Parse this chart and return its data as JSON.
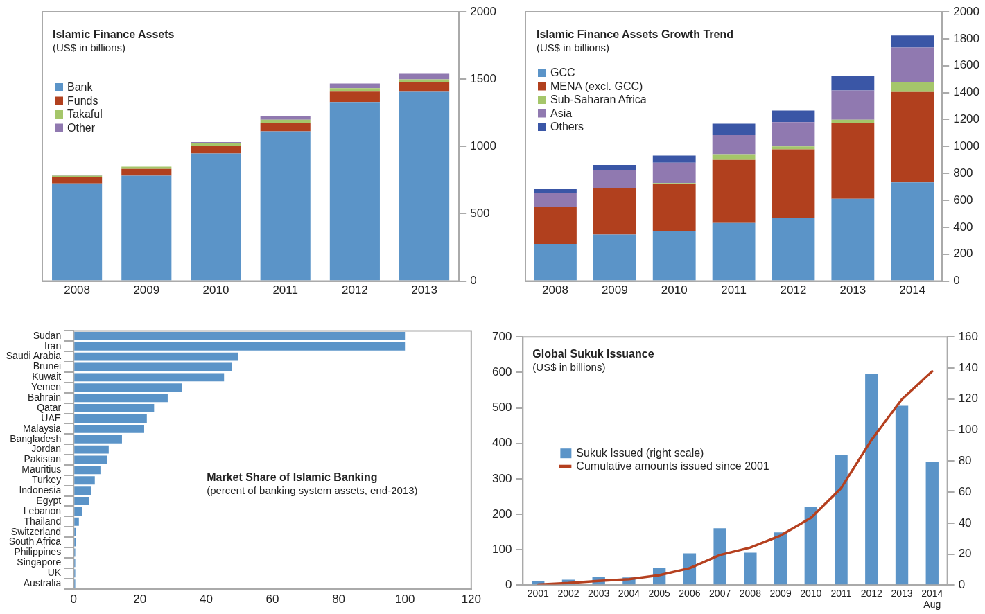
{
  "chart_data": [
    {
      "type": "bar",
      "title": "Islamic Finance Assets",
      "subtitle": "(US$ in billions)",
      "stacked": true,
      "legend": "top left",
      "categories": [
        "2008",
        "2009",
        "2010",
        "2011",
        "2012",
        "2013"
      ],
      "series": [
        {
          "name": "Bank",
          "color": "#5b94c8",
          "values": [
            725,
            783,
            948,
            1112,
            1330,
            1405
          ]
        },
        {
          "name": "Funds",
          "color": "#b1401e",
          "values": [
            50,
            50,
            58,
            62,
            77,
            72
          ]
        },
        {
          "name": "Takaful",
          "color": "#a5c66a",
          "values": [
            8,
            17,
            19,
            24,
            26,
            21
          ]
        },
        {
          "name": "Other",
          "color": "#9079b0",
          "values": [
            5,
            null,
            7,
            26,
            34,
            41
          ]
        }
      ],
      "ylim": [
        0,
        2000
      ],
      "yticks": [
        0,
        500,
        1000,
        1500,
        2000
      ]
    },
    {
      "type": "bar",
      "title": "Islamic Finance Assets Growth Trend",
      "subtitle": "(US$ in billions)",
      "stacked": true,
      "legend": "top left",
      "categories": [
        "2008",
        "2009",
        "2010",
        "2011",
        "2012",
        "2013",
        "2014"
      ],
      "series": [
        {
          "name": "GCC",
          "color": "#5b94c8",
          "values": [
            276,
            345,
            374,
            432,
            470,
            612,
            733
          ]
        },
        {
          "name": "MENA (excl. GCC)",
          "color": "#b1401e",
          "values": [
            272,
            344,
            347,
            468,
            509,
            562,
            671
          ]
        },
        {
          "name": "Sub-Saharan Africa",
          "color": "#a5c66a",
          "values": [
            0,
            0,
            7,
            43,
            21,
            25,
            73
          ]
        },
        {
          "name": "Asia",
          "color": "#9079b0",
          "values": [
            105,
            133,
            151,
            141,
            180,
            217,
            258
          ]
        },
        {
          "name": "Others",
          "color": "#3a56a6",
          "values": [
            30,
            41,
            53,
            85,
            87,
            105,
            89
          ]
        }
      ],
      "ylim": [
        0,
        2000
      ],
      "yticks": [
        0,
        200,
        400,
        600,
        800,
        1000,
        1200,
        1400,
        1600,
        1800,
        2000
      ]
    },
    {
      "type": "bar",
      "orientation": "horizontal",
      "title": "Market Share of Islamic Banking",
      "subtitle": "(percent of banking system assets, end-2013)",
      "categories": [
        "Sudan",
        "Iran",
        "Saudi Arabia",
        "Brunei",
        "Kuwait",
        "Yemen",
        "Bahrain",
        "Qatar",
        "UAE",
        "Malaysia",
        "Bangladesh",
        "Jordan",
        "Pakistan",
        "Mauritius",
        "Turkey",
        "Indonesia",
        "Egypt",
        "Lebanon",
        "Thailand",
        "Switzerland",
        "South Africa",
        "Philippines",
        "Singapore",
        "UK",
        "Australia"
      ],
      "values": [
        100,
        100,
        49.7,
        47.8,
        45.4,
        32.8,
        28.4,
        24.3,
        22.1,
        21.3,
        14.6,
        10.6,
        10.1,
        8.1,
        6.4,
        5.4,
        4.6,
        2.6,
        1.6,
        0.7,
        0.6,
        0.5,
        0.5,
        0.5,
        0.5
      ],
      "color": "#5b94c8",
      "xlim": [
        0,
        120
      ],
      "xticks": [
        0,
        20,
        40,
        60,
        80,
        100,
        120
      ]
    },
    {
      "type": "bar",
      "title": "Global Sukuk Issuance",
      "subtitle": "(US$ in billions)",
      "legend": "left",
      "categories": [
        "2001",
        "2002",
        "2003",
        "2004",
        "2005",
        "2006",
        "2007",
        "2008",
        "2009",
        "2010",
        "2011",
        "2012",
        "2013",
        "2014\nAug"
      ],
      "series": [
        {
          "name": "Sukuk Issued (right scale)",
          "type": "bar",
          "axis": "y2",
          "color": "#5b94c8",
          "values": [
            2.7,
            3.5,
            5.4,
            5.0,
            10.9,
            20.5,
            36.7,
            20.9,
            34.0,
            50.7,
            83.9,
            136.1,
            115.7,
            79.3
          ]
        },
        {
          "name": "Cumulative amounts issued since 2001",
          "type": "line",
          "axis": "y",
          "color": "#b5401f",
          "values": [
            2,
            6,
            12,
            17,
            28,
            48,
            85,
            106,
            140,
            190,
            274,
            410,
            524,
            603
          ]
        }
      ],
      "ylim": [
        0,
        700
      ],
      "yticks": [
        0,
        100,
        200,
        300,
        400,
        500,
        600,
        700
      ],
      "y2lim": [
        0,
        160
      ],
      "y2ticks": [
        0,
        20,
        40,
        60,
        80,
        100,
        120,
        140,
        160
      ]
    }
  ]
}
